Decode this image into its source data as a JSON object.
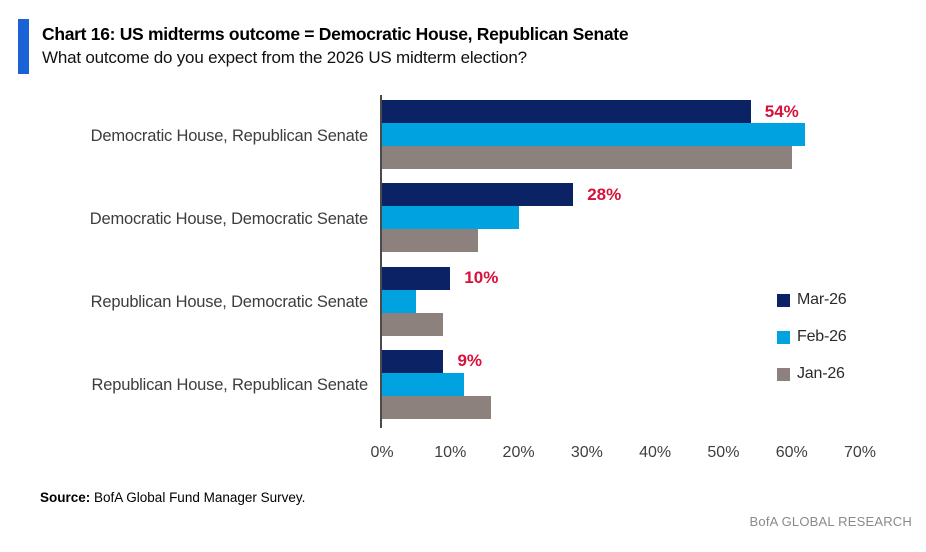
{
  "header": {
    "title": "Chart 16: US midterms outcome = Democratic House, Republican Senate",
    "subtitle": "What outcome do you expect from the 2026 US midterm election?"
  },
  "chart_data": {
    "type": "bar",
    "orientation": "horizontal",
    "title": "Chart 16: US midterms outcome = Democratic House, Republican Senate",
    "subtitle": "What outcome do you expect from the 2026 US midterm election?",
    "categories": [
      "Democratic House, Republican Senate",
      "Democratic House, Democratic Senate",
      "Republican House, Democratic Senate",
      "Republican House, Republican Senate"
    ],
    "series": [
      {
        "name": "Mar-26",
        "color": "#0b2265",
        "values": [
          54,
          28,
          10,
          9
        ],
        "data_labels": [
          "54%",
          "28%",
          "10%",
          "9%"
        ]
      },
      {
        "name": "Feb-26",
        "color": "#00a3e0",
        "values": [
          62,
          20,
          5,
          12
        ]
      },
      {
        "name": "Jan-26",
        "color": "#8c817c",
        "values": [
          60,
          14,
          9,
          16
        ]
      }
    ],
    "xlim": [
      0,
      70
    ],
    "x_ticks": [
      "0%",
      "10%",
      "20%",
      "30%",
      "40%",
      "50%",
      "60%",
      "70%"
    ],
    "xlabel": "",
    "ylabel": "",
    "grid": false,
    "legend_position": "right",
    "value_label_color": "#d8113a"
  },
  "legend": {
    "items": [
      {
        "label": "Mar-26",
        "color": "#0b2265"
      },
      {
        "label": "Feb-26",
        "color": "#00a3e0"
      },
      {
        "label": "Jan-26",
        "color": "#8c817c"
      }
    ]
  },
  "footer": {
    "source_label": "Source:",
    "source_text": " BofA Global Fund Manager Survey.",
    "brand": "BofA GLOBAL RESEARCH"
  },
  "colors": {
    "accent_blue": "#1b62d6",
    "navy": "#0b2265",
    "light_blue": "#00a3e0",
    "taupe_gray": "#8c817c",
    "value_label_red": "#d8113a",
    "axis_gray": "#4a4a4a"
  }
}
